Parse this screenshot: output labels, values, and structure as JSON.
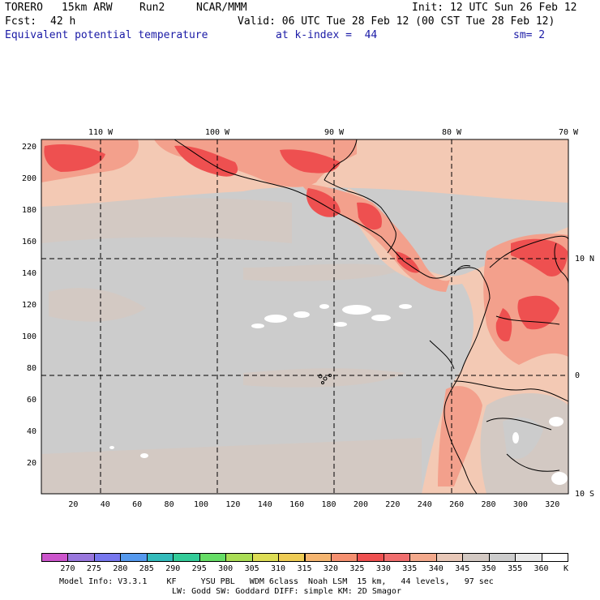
{
  "header": {
    "model": "TORERO",
    "resolution": "15km ARW",
    "run": "Run2",
    "org": "NCAR/MMM",
    "init": "Init: 12 UTC Sun 26 Feb 12",
    "fcst_label": "Fcst:",
    "fcst_value": "42 h",
    "valid": "Valid: 06 UTC Tue 28 Feb 12 (00 CST Tue 28 Feb 12)",
    "field": "Equivalent potential temperature",
    "level": "at k-index =  44",
    "smooth": "sm= 2"
  },
  "map": {
    "lon_labels": [
      "110 W",
      "100 W",
      "90 W",
      "80 W",
      "70 W"
    ],
    "lat_labels": [
      "10 N",
      "0",
      "10 S"
    ],
    "x_ticks": [
      "20",
      "40",
      "60",
      "80",
      "100",
      "120",
      "140",
      "160",
      "180",
      "200",
      "220",
      "240",
      "260",
      "280",
      "300",
      "320"
    ],
    "y_ticks": [
      "220",
      "200",
      "180",
      "160",
      "140",
      "120",
      "100",
      "80",
      "60",
      "40",
      "20"
    ]
  },
  "colorbar": {
    "unit": "K",
    "labels": [
      "270",
      "275",
      "280",
      "285",
      "290",
      "295",
      "300",
      "305",
      "310",
      "315",
      "320",
      "325",
      "330",
      "335",
      "340",
      "345",
      "350",
      "355",
      "360"
    ],
    "colors": [
      "#cc55cc",
      "#9977dd",
      "#7777ee",
      "#5599ee",
      "#33bbbb",
      "#33cc99",
      "#66dd66",
      "#aadd55",
      "#dddd55",
      "#eecc55",
      "#f5b570",
      "#f59070",
      "#ee5050",
      "#f06e6e",
      "#f3a98c",
      "#e8c8b8",
      "#d3c9c3",
      "#cccccc",
      "#e8e8e8",
      "#ffffff"
    ]
  },
  "footer": {
    "line1": "Model Info: V3.3.1    KF     YSU PBL   WDM 6class  Noah LSM  15 km,   44 levels,   97 sec",
    "line2": "LW: Godd SW: Goddard DIFF: simple KM: 2D Smagor"
  },
  "colors": {
    "ocean_grey": "#cccccc",
    "tan": "#d3c9c3",
    "peach": "#f3c9b4",
    "salmon": "#f3a08c",
    "red": "#ee5050",
    "white_patch": "#ffffff"
  }
}
